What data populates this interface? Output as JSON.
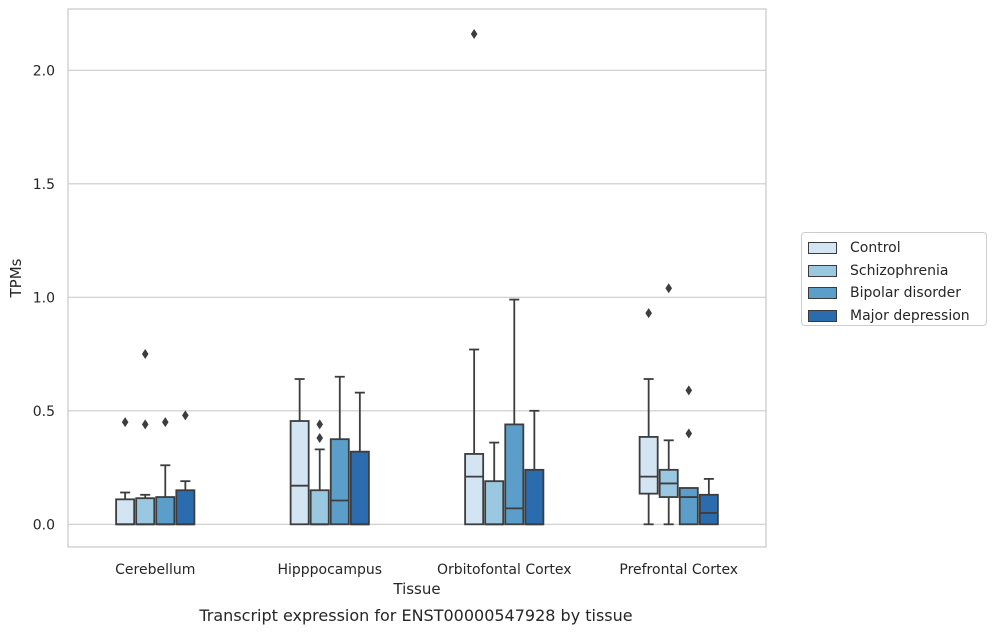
{
  "chart_data": {
    "type": "box",
    "xlabel": "Tissue",
    "ylabel": "TPMs",
    "caption": "Transcript expression for ENST00000547928 by tissue",
    "ylim": [
      -0.1,
      2.27
    ],
    "yticks": [
      "0.0",
      "0.5",
      "1.0",
      "1.5",
      "2.0"
    ],
    "grid": "horizontal",
    "legend_position": "right",
    "categories": [
      "Cerebellum",
      "Hipppocampus",
      "Orbitofontal Cortex",
      "Prefrontal Cortex"
    ],
    "series": [
      {
        "name": "Control",
        "color": "#d3e4f3",
        "boxes": [
          {
            "whisker_low": 0.0,
            "q1": 0.0,
            "median": 0.0,
            "q3": 0.11,
            "whisker_high": 0.14,
            "outliers": [
              0.45
            ]
          },
          {
            "whisker_low": 0.0,
            "q1": 0.0,
            "median": 0.17,
            "q3": 0.455,
            "whisker_high": 0.64,
            "outliers": []
          },
          {
            "whisker_low": 0.0,
            "q1": 0.0,
            "median": 0.21,
            "q3": 0.31,
            "whisker_high": 0.77,
            "outliers": [
              2.16
            ]
          },
          {
            "whisker_low": 0.0,
            "q1": 0.135,
            "median": 0.21,
            "q3": 0.385,
            "whisker_high": 0.64,
            "outliers": [
              0.93
            ]
          }
        ]
      },
      {
        "name": "Schizophrenia",
        "color": "#9ac8e0",
        "boxes": [
          {
            "whisker_low": 0.0,
            "q1": 0.0,
            "median": 0.0,
            "q3": 0.115,
            "whisker_high": 0.13,
            "outliers": [
              0.44,
              0.75
            ]
          },
          {
            "whisker_low": 0.0,
            "q1": 0.0,
            "median": 0.0,
            "q3": 0.15,
            "whisker_high": 0.33,
            "outliers": [
              0.38,
              0.44
            ]
          },
          {
            "whisker_low": 0.0,
            "q1": 0.0,
            "median": 0.0,
            "q3": 0.19,
            "whisker_high": 0.36,
            "outliers": []
          },
          {
            "whisker_low": 0.0,
            "q1": 0.12,
            "median": 0.18,
            "q3": 0.24,
            "whisker_high": 0.37,
            "outliers": [
              1.04
            ]
          }
        ]
      },
      {
        "name": "Bipolar disorder",
        "color": "#5a9ec9",
        "boxes": [
          {
            "whisker_low": 0.0,
            "q1": 0.0,
            "median": 0.0,
            "q3": 0.12,
            "whisker_high": 0.26,
            "outliers": [
              0.45
            ]
          },
          {
            "whisker_low": 0.0,
            "q1": 0.0,
            "median": 0.105,
            "q3": 0.375,
            "whisker_high": 0.65,
            "outliers": []
          },
          {
            "whisker_low": 0.0,
            "q1": 0.0,
            "median": 0.07,
            "q3": 0.44,
            "whisker_high": 0.99,
            "outliers": []
          },
          {
            "whisker_low": 0.0,
            "q1": 0.0,
            "median": 0.12,
            "q3": 0.16,
            "whisker_high": 0.16,
            "outliers": [
              0.4,
              0.59
            ]
          }
        ]
      },
      {
        "name": "Major depression",
        "color": "#2a6cae",
        "boxes": [
          {
            "whisker_low": 0.0,
            "q1": 0.0,
            "median": 0.0,
            "q3": 0.15,
            "whisker_high": 0.19,
            "outliers": [
              0.48
            ]
          },
          {
            "whisker_low": 0.0,
            "q1": 0.0,
            "median": 0.0,
            "q3": 0.32,
            "whisker_high": 0.58,
            "outliers": []
          },
          {
            "whisker_low": 0.0,
            "q1": 0.0,
            "median": 0.0,
            "q3": 0.24,
            "whisker_high": 0.5,
            "outliers": []
          },
          {
            "whisker_low": 0.0,
            "q1": 0.0,
            "median": 0.05,
            "q3": 0.13,
            "whisker_high": 0.2,
            "outliers": []
          }
        ]
      }
    ]
  }
}
